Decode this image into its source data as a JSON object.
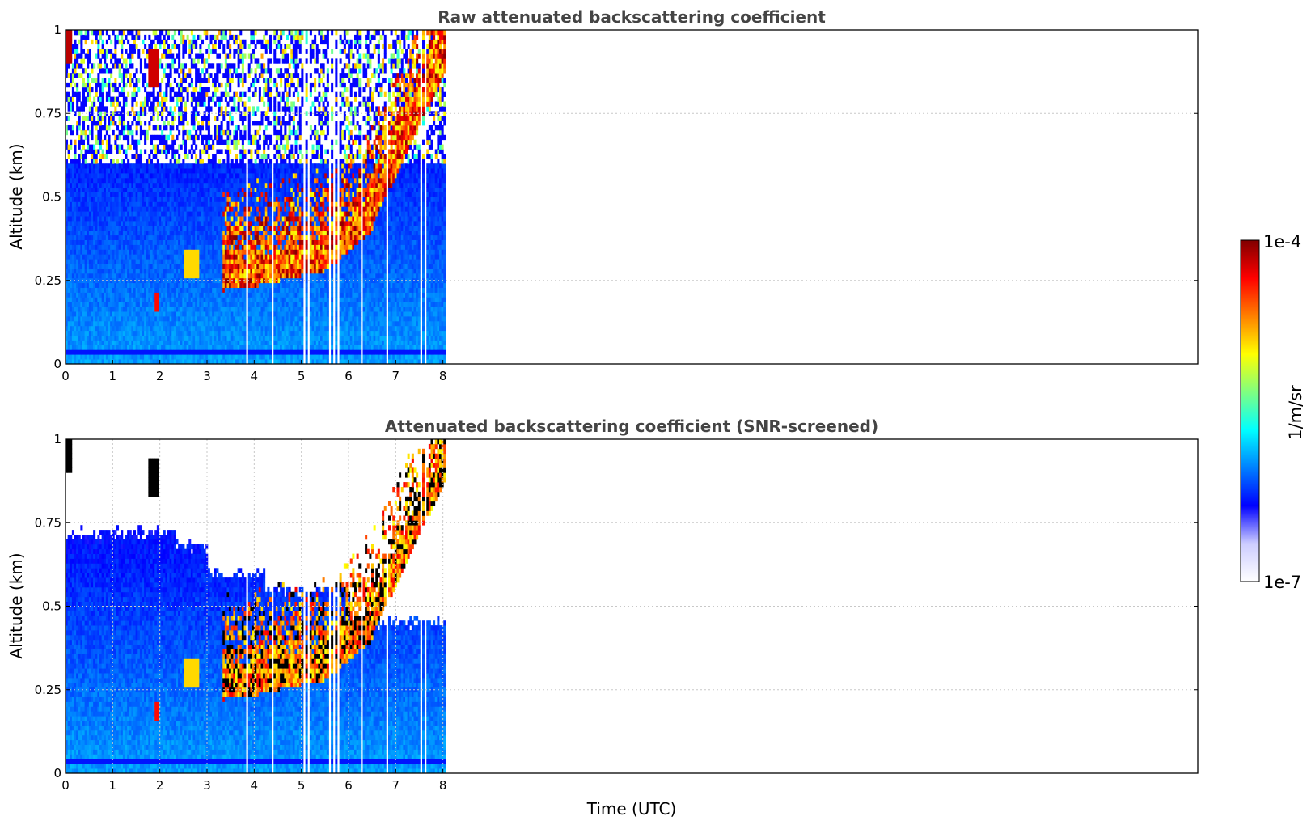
{
  "chart_data": [
    {
      "type": "heatmap",
      "title": "Raw attenuated backscattering coefficient",
      "xlabel": "",
      "ylabel": "Altitude (km)",
      "xlim": [
        0,
        24
      ],
      "ylim": [
        0,
        1
      ],
      "x_ticks": [
        "0",
        "1",
        "2",
        "3",
        "4",
        "5",
        "6",
        "7",
        "8"
      ],
      "y_ticks": [
        "0",
        "0.25",
        "0.5",
        "0.75",
        "1"
      ],
      "grid": "dotted, horizontal only",
      "data_extent_hours": [
        0,
        8.1
      ],
      "features": [
        {
          "name": "background",
          "t_range": [
            0,
            8.1
          ],
          "alt_range": [
            0,
            0.7
          ],
          "level": "low"
        },
        {
          "name": "noise",
          "t_range": [
            0,
            8.1
          ],
          "alt_range": [
            0.6,
            1.0
          ],
          "level": "sparse"
        },
        {
          "name": "surface-band",
          "t_range": [
            0,
            8.1
          ],
          "alt": 0.04
        },
        {
          "name": "high-cloud-early",
          "t": 0.05,
          "alt_range": [
            0.9,
            1.0
          ],
          "level": "high"
        },
        {
          "name": "high-cloud-2h",
          "t": 1.85,
          "alt_range": [
            0.83,
            0.95
          ],
          "level": "high"
        },
        {
          "name": "low-echo-2h",
          "t": 1.92,
          "alt_range": [
            0.15,
            0.22
          ],
          "level": "high"
        },
        {
          "name": "low-cloud-base",
          "t_range": [
            3.3,
            7.9
          ],
          "alt_from": 0.22,
          "alt_to": 0.9,
          "level": "high"
        }
      ]
    },
    {
      "type": "heatmap",
      "title": "Attenuated backscattering coefficient (SNR-screened)",
      "xlabel": "Time (UTC)",
      "ylabel": "Altitude (km)",
      "xlim": [
        0,
        24
      ],
      "ylim": [
        0,
        1
      ],
      "x_ticks": [
        "0",
        "1",
        "2",
        "3",
        "4",
        "5",
        "6",
        "7",
        "8"
      ],
      "y_ticks": [
        "0",
        "0.25",
        "0.5",
        "0.75",
        "1"
      ],
      "grid": "dotted, both axes",
      "data_extent_hours": [
        0,
        8.1
      ],
      "screened_top_km": [
        0.72,
        0.68,
        0.6,
        0.55,
        0.45
      ]
    }
  ],
  "colorbar": {
    "label": "1/m/sr",
    "max_label": "1e-4",
    "min_label": "1e-7",
    "scale": "log",
    "range": [
      1e-07,
      0.0001
    ],
    "colormap": [
      "#ffffff",
      "#ccccff",
      "#0000ff",
      "#0080ff",
      "#00ffff",
      "#80ff80",
      "#ffff00",
      "#ff8000",
      "#ff0000",
      "#800000"
    ]
  },
  "colors": {
    "title_text": "#444444",
    "grid": "#c8c8c8",
    "screened_saturation": "#000000"
  }
}
